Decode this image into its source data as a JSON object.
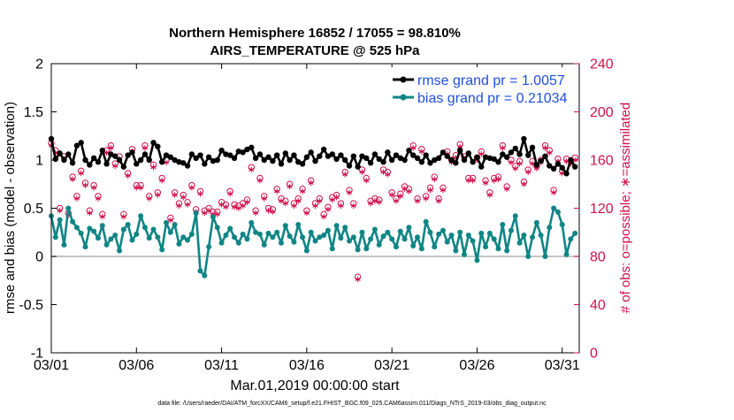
{
  "chart_data": {
    "type": "line",
    "title": [
      "Northern Hemisphere 16852 / 17055 = 98.810%",
      "AIRS_TEMPERATURE @ 525 hPa"
    ],
    "xlabel": "Mar.01,2019 00:00:00 start",
    "ylabel": "rmse and bias (model - observation)",
    "y2label": "# of obs: o=possible; ∗=assimilated",
    "footer": "data file: /Users/raeder/DAI/ATM_forcXX/CAM6_setup/f.e21.FHIST_BGC.f09_025.CAM6assim.011/Diags_NTrS_2019-03/obs_diag_output.nc",
    "xlim": [
      1,
      32
    ],
    "ylim": [
      -1,
      2
    ],
    "y2lim": [
      0,
      240
    ],
    "x_ticks": [
      1,
      6,
      11,
      16,
      21,
      26,
      31
    ],
    "x_tick_labels": [
      "03/01",
      "03/06",
      "03/11",
      "03/16",
      "03/21",
      "03/26",
      "03/31"
    ],
    "y_ticks": [
      -1,
      -0.5,
      0,
      0.5,
      1,
      1.5,
      2
    ],
    "y_tick_labels": [
      "-1",
      "-0.5",
      "0",
      "0.5",
      "1",
      "1.5",
      "2"
    ],
    "y2_ticks": [
      0,
      40,
      80,
      120,
      160,
      200,
      240
    ],
    "y2_tick_labels": [
      "0",
      "40",
      "80",
      "120",
      "160",
      "200",
      "240"
    ],
    "legend_position": "top-right",
    "n_points": 124,
    "x_start": 1,
    "x_step": 0.25,
    "series": [
      {
        "name": "rmse grand pr = 1.0057",
        "label_color": "#1f4fdd",
        "color": "#000000",
        "marker": "star",
        "values": [
          1.22,
          1.01,
          1.07,
          1.0,
          1.06,
          0.97,
          1.15,
          1.18,
          1.0,
          0.95,
          1.02,
          0.98,
          1.1,
          0.96,
          1.06,
          1.04,
          1.0,
          0.93,
          1.05,
          1.08,
          0.96,
          1.0,
          1.06,
          1.0,
          1.18,
          1.14,
          0.98,
          1.05,
          1.03,
          1.0,
          0.98,
          0.97,
          0.94,
          1.06,
          1.02,
          1.05,
          0.96,
          1.03,
          0.99,
          1.0,
          1.1,
          1.06,
          1.05,
          1.02,
          1.09,
          1.08,
          1.11,
          1.13,
          1.02,
          1.06,
          1.0,
          1.03,
          0.99,
          1.05,
          0.96,
          1.07,
          1.0,
          1.05,
          0.98,
          0.96,
          1.03,
          1.08,
          0.99,
          1.04,
          1.11,
          1.04,
          1.06,
          1.01,
          1.05,
          1.0,
          0.94,
          1.04,
          0.93,
          1.04,
          1.02,
          0.97,
          1.06,
          1.01,
          0.98,
          1.08,
          1.0,
          1.05,
          1.02,
          1.0,
          1.1,
          1.05,
          1.02,
          0.98,
          1.05,
          0.97,
          1.0,
          1.02,
          1.08,
          1.04,
          1.0,
          0.97,
          1.1,
          1.0,
          1.07,
          0.98,
          1.03,
          0.93,
          1.03,
          1.02,
          1.01,
          0.98,
          1.06,
          1.03,
          1.08,
          1.12,
          1.06,
          1.22,
          1.05,
          1.13,
          0.95,
          0.99,
          1.04,
          0.94,
          0.91,
          0.96,
          0.92,
          0.86,
          1.0,
          0.93
        ]
      },
      {
        "name": "bias grand pr = 0.21034",
        "label_color": "#1f4fdd",
        "color": "#108585",
        "marker": "circle",
        "values": [
          0.42,
          0.2,
          0.38,
          0.12,
          0.5,
          0.36,
          0.3,
          0.24,
          0.1,
          0.29,
          0.26,
          0.19,
          0.32,
          0.12,
          0.18,
          0.22,
          0.06,
          0.28,
          0.33,
          0.17,
          0.23,
          0.42,
          0.3,
          0.19,
          0.28,
          0.2,
          0.07,
          0.35,
          0.25,
          0.33,
          0.13,
          0.2,
          0.17,
          0.23,
          0.45,
          -0.15,
          -0.2,
          0.1,
          0.41,
          0.3,
          0.14,
          0.22,
          0.29,
          0.2,
          0.14,
          0.23,
          0.18,
          0.35,
          0.25,
          0.23,
          0.12,
          0.24,
          0.2,
          0.25,
          0.14,
          0.32,
          0.21,
          0.15,
          0.33,
          0.2,
          0.06,
          0.25,
          0.16,
          0.2,
          0.22,
          0.27,
          0.08,
          0.32,
          0.19,
          0.3,
          0.16,
          0.2,
          0.07,
          0.25,
          0.08,
          0.18,
          0.28,
          0.12,
          0.21,
          0.25,
          0.18,
          0.1,
          0.26,
          0.18,
          0.3,
          0.11,
          0.2,
          0.08,
          0.36,
          0.25,
          0.1,
          0.23,
          0.27,
          0.15,
          0.22,
          0.06,
          0.25,
          0.02,
          0.22,
          0.16,
          -0.04,
          0.24,
          0.1,
          0.24,
          0.18,
          0.08,
          0.33,
          0.06,
          0.27,
          0.42,
          0.14,
          0.22,
          0.0,
          0.2,
          0.35,
          0.22,
          0.0,
          0.3,
          0.5,
          0.46,
          0.33,
          0.02,
          0.18,
          0.24
        ]
      },
      {
        "name": "obs possible",
        "axis": "right",
        "color": "#d0104c",
        "marker": "o",
        "values": [
          174,
          168,
          120,
          163,
          116,
          146,
          130,
          151,
          141,
          118,
          139,
          130,
          115,
          168,
          172,
          157,
          163,
          115,
          149,
          169,
          139,
          139,
          172,
          130,
          156,
          133,
          145,
          160,
          112,
          133,
          124,
          131,
          125,
          139,
          119,
          134,
          118,
          120,
          117,
          117,
          125,
          123,
          134,
          123,
          122,
          124,
          127,
          154,
          118,
          145,
          130,
          120,
          119,
          136,
          128,
          126,
          140,
          124,
          128,
          136,
          118,
          143,
          124,
          128,
          115,
          121,
          129,
          131,
          124,
          150,
          135,
          124,
          63,
          152,
          145,
          126,
          128,
          127,
          152,
          150,
          133,
          128,
          132,
          138,
          136,
          172,
          128,
          169,
          130,
          137,
          146,
          128,
          137,
          167,
          160,
          164,
          173,
          163,
          145,
          145,
          162,
          167,
          143,
          133,
          145,
          146,
          172,
          138,
          160,
          155,
          159,
          142,
          152,
          159,
          155,
          160,
          172,
          168,
          135,
          161,
          151,
          161,
          159,
          162
        ]
      },
      {
        "name": "obs assimilated",
        "axis": "right",
        "color": "#d0104c",
        "marker": "asterisk",
        "values": [
          172,
          166,
          118,
          161,
          114,
          144,
          128,
          149,
          139,
          116,
          137,
          128,
          113,
          166,
          170,
          155,
          161,
          113,
          147,
          167,
          137,
          137,
          170,
          128,
          154,
          131,
          143,
          158,
          110,
          131,
          122,
          129,
          123,
          137,
          117,
          132,
          116,
          118,
          115,
          115,
          123,
          121,
          132,
          121,
          120,
          122,
          125,
          152,
          116,
          143,
          128,
          118,
          117,
          134,
          126,
          124,
          138,
          122,
          126,
          134,
          116,
          141,
          122,
          126,
          113,
          119,
          127,
          129,
          122,
          148,
          133,
          122,
          61,
          150,
          143,
          124,
          126,
          125,
          150,
          148,
          131,
          126,
          130,
          136,
          134,
          170,
          126,
          167,
          128,
          135,
          144,
          126,
          135,
          165,
          158,
          162,
          171,
          161,
          143,
          143,
          160,
          165,
          141,
          131,
          143,
          144,
          170,
          136,
          158,
          153,
          157,
          140,
          150,
          157,
          153,
          158,
          170,
          166,
          133,
          159,
          149,
          159,
          157,
          160
        ]
      }
    ]
  }
}
